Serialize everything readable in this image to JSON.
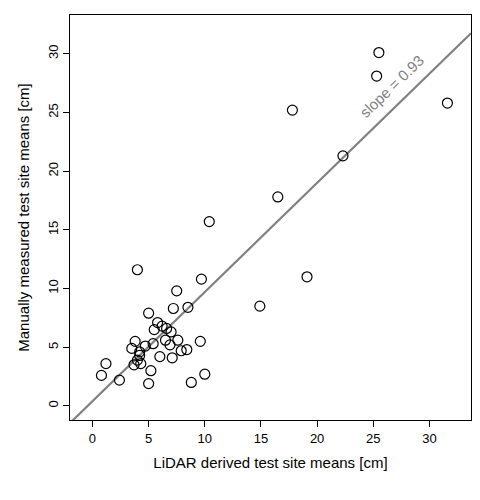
{
  "chart_data": {
    "type": "scatter",
    "x_label": "LiDAR derived test site means [cm]",
    "y_label": "Manually measured test site means [cm]",
    "x": [
      25.5,
      25.3,
      31.6,
      17.8,
      22.3,
      16.5,
      10.4,
      4.0,
      19.1,
      9.7,
      7.5,
      7.2,
      8.5,
      14.9,
      5.0,
      5.8,
      6.2,
      6.6,
      5.5,
      7.0,
      6.5,
      3.8,
      4.7,
      5.4,
      7.6,
      9.6,
      3.5,
      4.2,
      6.9,
      7.9,
      8.4,
      4.2,
      6.0,
      7.1,
      4.0,
      3.7,
      1.2,
      4.3,
      5.2,
      0.8,
      2.4,
      10.0,
      8.8,
      5.0
    ],
    "values": [
      30.1,
      28.1,
      25.8,
      25.2,
      21.3,
      17.8,
      15.7,
      11.6,
      11.0,
      10.8,
      9.8,
      8.3,
      8.4,
      8.5,
      7.9,
      7.1,
      6.8,
      6.6,
      6.5,
      6.3,
      5.6,
      5.5,
      5.1,
      5.3,
      5.6,
      5.5,
      4.9,
      4.6,
      5.2,
      4.7,
      4.8,
      4.3,
      4.2,
      4.1,
      3.9,
      3.5,
      3.6,
      3.6,
      3.0,
      2.6,
      2.2,
      2.7,
      2.0,
      1.9
    ],
    "color": "#000000",
    "marker": "open circle",
    "fit": {
      "slope": 0.93,
      "intercept": 0.4,
      "color": "#808080",
      "label": "slope = 0.93"
    },
    "xlim": [
      -2,
      33.7
    ],
    "ylim": [
      -1.2,
      33.3
    ],
    "xticks": [
      0,
      5,
      10,
      15,
      20,
      25,
      30
    ],
    "yticks": [
      0,
      5,
      10,
      15,
      20,
      25,
      30
    ],
    "grid": false
  }
}
